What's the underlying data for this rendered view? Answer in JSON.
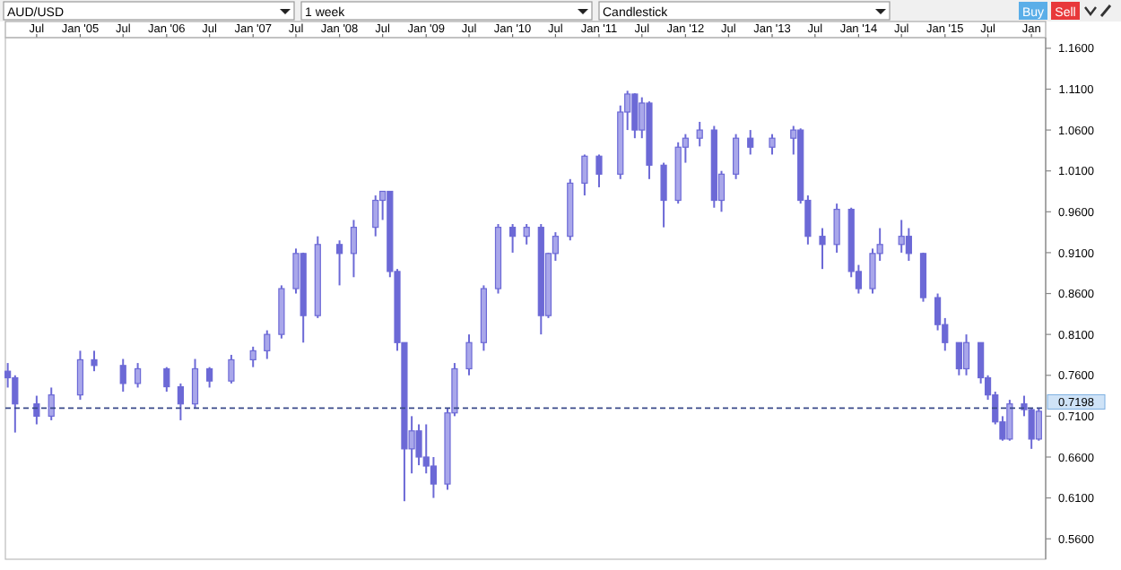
{
  "chart_data": {
    "type": "candlestick",
    "title": "AUD/USD",
    "color": "#6c69d6",
    "annotations": [
      "1 week",
      "Candlestick",
      "Buy",
      "Sell"
    ],
    "x": [
      "2004-03",
      "2004-04",
      "2004-07",
      "2004-09",
      "2005-01",
      "2005-03",
      "2005-07",
      "2005-09",
      "2006-01",
      "2006-03",
      "2006-05",
      "2006-07",
      "2006-10",
      "2007-01",
      "2007-03",
      "2007-05",
      "2007-07",
      "2007-08",
      "2007-10",
      "2008-01",
      "2008-03",
      "2008-06",
      "2008-07",
      "2008-08",
      "2008-09",
      "2008-10",
      "2008-11",
      "2008-12",
      "2009-01",
      "2009-02",
      "2009-04",
      "2009-05",
      "2009-07",
      "2009-09",
      "2009-11",
      "2010-01",
      "2010-03",
      "2010-05",
      "2010-06",
      "2010-07",
      "2010-09",
      "2010-11",
      "2011-01",
      "2011-04",
      "2011-05",
      "2011-06",
      "2011-07",
      "2011-08",
      "2011-10",
      "2011-12",
      "2012-01",
      "2012-03",
      "2012-05",
      "2012-06",
      "2012-08",
      "2012-10",
      "2013-01",
      "2013-04",
      "2013-05",
      "2013-06",
      "2013-08",
      "2013-10",
      "2013-12",
      "2014-01",
      "2014-03",
      "2014-04",
      "2014-07",
      "2014-08",
      "2014-10",
      "2014-12",
      "2015-01",
      "2015-03",
      "2015-04",
      "2015-06",
      "2015-07",
      "2015-08",
      "2015-09",
      "2015-10",
      "2015-12",
      "2016-01",
      "2016-02"
    ],
    "ohlc": [
      [
        0.765,
        0.775,
        0.745,
        0.757
      ],
      [
        0.757,
        0.76,
        0.69,
        0.725
      ],
      [
        0.725,
        0.735,
        0.7,
        0.71
      ],
      [
        0.71,
        0.745,
        0.705,
        0.736
      ],
      [
        0.736,
        0.79,
        0.73,
        0.779
      ],
      [
        0.779,
        0.79,
        0.765,
        0.772
      ],
      [
        0.772,
        0.78,
        0.74,
        0.75
      ],
      [
        0.75,
        0.775,
        0.745,
        0.768
      ],
      [
        0.768,
        0.77,
        0.74,
        0.746
      ],
      [
        0.746,
        0.75,
        0.705,
        0.725
      ],
      [
        0.725,
        0.78,
        0.72,
        0.768
      ],
      [
        0.768,
        0.77,
        0.745,
        0.753
      ],
      [
        0.753,
        0.785,
        0.75,
        0.779
      ],
      [
        0.779,
        0.795,
        0.77,
        0.79
      ],
      [
        0.79,
        0.815,
        0.78,
        0.81
      ],
      [
        0.81,
        0.87,
        0.805,
        0.866
      ],
      [
        0.866,
        0.915,
        0.86,
        0.909
      ],
      [
        0.909,
        0.91,
        0.8,
        0.833
      ],
      [
        0.833,
        0.93,
        0.83,
        0.92
      ],
      [
        0.92,
        0.925,
        0.87,
        0.909
      ],
      [
        0.909,
        0.95,
        0.88,
        0.941
      ],
      [
        0.941,
        0.98,
        0.93,
        0.974
      ],
      [
        0.974,
        0.985,
        0.95,
        0.985
      ],
      [
        0.985,
        0.985,
        0.88,
        0.887
      ],
      [
        0.887,
        0.89,
        0.79,
        0.8
      ],
      [
        0.8,
        0.8,
        0.606,
        0.67
      ],
      [
        0.67,
        0.71,
        0.64,
        0.692
      ],
      [
        0.692,
        0.7,
        0.65,
        0.66
      ],
      [
        0.66,
        0.7,
        0.64,
        0.649
      ],
      [
        0.649,
        0.66,
        0.61,
        0.627
      ],
      [
        0.627,
        0.72,
        0.62,
        0.714
      ],
      [
        0.714,
        0.775,
        0.71,
        0.768
      ],
      [
        0.768,
        0.81,
        0.76,
        0.8
      ],
      [
        0.8,
        0.87,
        0.79,
        0.866
      ],
      [
        0.866,
        0.945,
        0.86,
        0.941
      ],
      [
        0.941,
        0.945,
        0.91,
        0.93
      ],
      [
        0.93,
        0.945,
        0.92,
        0.941
      ],
      [
        0.941,
        0.945,
        0.81,
        0.833
      ],
      [
        0.833,
        0.91,
        0.83,
        0.909
      ],
      [
        0.909,
        0.935,
        0.9,
        0.93
      ],
      [
        0.93,
        1.0,
        0.925,
        0.995
      ],
      [
        0.995,
        1.03,
        0.98,
        1.028
      ],
      [
        1.028,
        1.03,
        0.99,
        1.006
      ],
      [
        1.006,
        1.09,
        1.0,
        1.082
      ],
      [
        1.082,
        1.108,
        1.06,
        1.104
      ],
      [
        1.104,
        1.105,
        1.05,
        1.06
      ],
      [
        1.06,
        1.1,
        1.05,
        1.093
      ],
      [
        1.093,
        1.095,
        1.0,
        1.017
      ],
      [
        1.017,
        1.02,
        0.941,
        0.974
      ],
      [
        0.974,
        1.045,
        0.97,
        1.039
      ],
      [
        1.039,
        1.055,
        1.02,
        1.05
      ],
      [
        1.05,
        1.07,
        1.04,
        1.06
      ],
      [
        1.06,
        1.065,
        0.965,
        0.974
      ],
      [
        0.974,
        1.01,
        0.96,
        1.006
      ],
      [
        1.006,
        1.055,
        1.0,
        1.05
      ],
      [
        1.05,
        1.06,
        1.03,
        1.039
      ],
      [
        1.039,
        1.055,
        1.03,
        1.05
      ],
      [
        1.05,
        1.065,
        1.03,
        1.06
      ],
      [
        1.06,
        1.062,
        0.97,
        0.974
      ],
      [
        0.974,
        0.98,
        0.92,
        0.93
      ],
      [
        0.93,
        0.94,
        0.89,
        0.92
      ],
      [
        0.92,
        0.97,
        0.91,
        0.963
      ],
      [
        0.963,
        0.965,
        0.88,
        0.887
      ],
      [
        0.887,
        0.895,
        0.86,
        0.866
      ],
      [
        0.866,
        0.915,
        0.86,
        0.909
      ],
      [
        0.909,
        0.94,
        0.9,
        0.92
      ],
      [
        0.92,
        0.95,
        0.91,
        0.93
      ],
      [
        0.93,
        0.94,
        0.9,
        0.909
      ],
      [
        0.909,
        0.91,
        0.85,
        0.855
      ],
      [
        0.855,
        0.86,
        0.815,
        0.822
      ],
      [
        0.822,
        0.83,
        0.79,
        0.8
      ],
      [
        0.8,
        0.8,
        0.76,
        0.768
      ],
      [
        0.768,
        0.81,
        0.76,
        0.8
      ],
      [
        0.8,
        0.8,
        0.75,
        0.757
      ],
      [
        0.757,
        0.76,
        0.73,
        0.736
      ],
      [
        0.736,
        0.74,
        0.7,
        0.703
      ],
      [
        0.703,
        0.71,
        0.68,
        0.682
      ],
      [
        0.682,
        0.73,
        0.68,
        0.725
      ],
      [
        0.725,
        0.735,
        0.71,
        0.718
      ],
      [
        0.718,
        0.72,
        0.67,
        0.682
      ],
      [
        0.682,
        0.72,
        0.68,
        0.716
      ]
    ],
    "xlim": [
      "2004-02-20",
      "2016-03-01"
    ],
    "xticks": [
      {
        "value": "2004-07-01",
        "label": "Jul"
      },
      {
        "value": "2005-01-01",
        "label": "Jan '05"
      },
      {
        "value": "2005-07-01",
        "label": "Jul"
      },
      {
        "value": "2006-01-01",
        "label": "Jan '06"
      },
      {
        "value": "2006-07-01",
        "label": "Jul"
      },
      {
        "value": "2007-01-01",
        "label": "Jan '07"
      },
      {
        "value": "2007-07-01",
        "label": "Jul"
      },
      {
        "value": "2008-01-01",
        "label": "Jan '08"
      },
      {
        "value": "2008-07-01",
        "label": "Jul"
      },
      {
        "value": "2009-01-01",
        "label": "Jan '09"
      },
      {
        "value": "2009-07-01",
        "label": "Jul"
      },
      {
        "value": "2010-01-01",
        "label": "Jan '10"
      },
      {
        "value": "2010-07-01",
        "label": "Jul"
      },
      {
        "value": "2011-01-01",
        "label": "Jan '11"
      },
      {
        "value": "2011-07-01",
        "label": "Jul"
      },
      {
        "value": "2012-01-01",
        "label": "Jan '12"
      },
      {
        "value": "2012-07-01",
        "label": "Jul"
      },
      {
        "value": "2013-01-01",
        "label": "Jan '13"
      },
      {
        "value": "2013-07-01",
        "label": "Jul"
      },
      {
        "value": "2014-01-01",
        "label": "Jan '14"
      },
      {
        "value": "2014-07-01",
        "label": "Jul"
      },
      {
        "value": "2015-01-01",
        "label": "Jan '15"
      },
      {
        "value": "2015-07-01",
        "label": "Jul"
      },
      {
        "value": "2016-01-01",
        "label": "Jan"
      }
    ],
    "ylim": [
      0.535,
      1.173
    ],
    "yticks": [
      {
        "value": 0.56,
        "label": "0.5600"
      },
      {
        "value": 0.61,
        "label": "0.6100"
      },
      {
        "value": 0.66,
        "label": "0.6600"
      },
      {
        "value": 0.71,
        "label": "0.7100"
      },
      {
        "value": 0.76,
        "label": "0.7600"
      },
      {
        "value": 0.81,
        "label": "0.8100"
      },
      {
        "value": 0.86,
        "label": "0.8600"
      },
      {
        "value": 0.91,
        "label": "0.9100"
      },
      {
        "value": 0.96,
        "label": "0.9600"
      },
      {
        "value": 1.01,
        "label": "1.0100"
      },
      {
        "value": 1.06,
        "label": "1.0600"
      },
      {
        "value": 1.11,
        "label": "1.1100"
      },
      {
        "value": 1.16,
        "label": "1.1600"
      }
    ],
    "ref_lines": [
      {
        "axis": "y",
        "value": 0.7198,
        "label": "0.7198",
        "color": "#3a4a8a",
        "line_style": "dashed"
      }
    ]
  }
}
